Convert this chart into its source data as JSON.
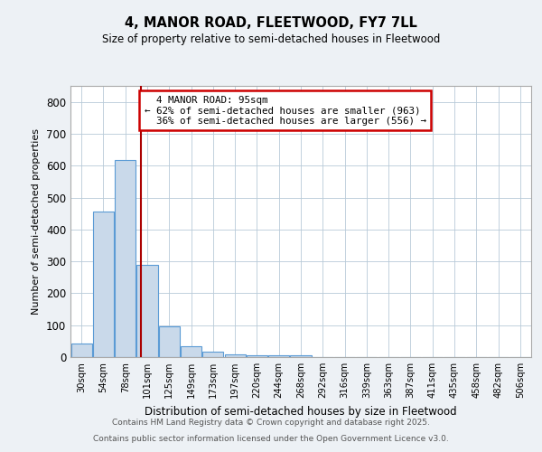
{
  "title": "4, MANOR ROAD, FLEETWOOD, FY7 7LL",
  "subtitle": "Size of property relative to semi-detached houses in Fleetwood",
  "xlabel": "Distribution of semi-detached houses by size in Fleetwood",
  "ylabel": "Number of semi-detached properties",
  "bar_color": "#c9d9ea",
  "bar_edge_color": "#5b9bd5",
  "categories": [
    "30sqm",
    "54sqm",
    "78sqm",
    "101sqm",
    "125sqm",
    "149sqm",
    "173sqm",
    "197sqm",
    "220sqm",
    "244sqm",
    "268sqm",
    "292sqm",
    "316sqm",
    "339sqm",
    "363sqm",
    "387sqm",
    "411sqm",
    "435sqm",
    "458sqm",
    "482sqm",
    "506sqm"
  ],
  "values": [
    43,
    456,
    617,
    289,
    95,
    35,
    17,
    8,
    5,
    5,
    6,
    0,
    0,
    0,
    0,
    0,
    0,
    0,
    0,
    0,
    0
  ],
  "property_size": 95,
  "property_label": "4 MANOR ROAD: 95sqm",
  "pct_smaller": 62,
  "pct_larger": 36,
  "count_smaller": 963,
  "count_larger": 556,
  "red_line_color": "#aa0000",
  "annotation_box_color": "#cc0000",
  "ylim": [
    0,
    850
  ],
  "yticks": [
    0,
    100,
    200,
    300,
    400,
    500,
    600,
    700,
    800
  ],
  "footer_line1": "Contains HM Land Registry data © Crown copyright and database right 2025.",
  "footer_line2": "Contains public sector information licensed under the Open Government Licence v3.0.",
  "background_color": "#edf1f5",
  "plot_bg_color": "#ffffff",
  "grid_color": "#b8cad8"
}
